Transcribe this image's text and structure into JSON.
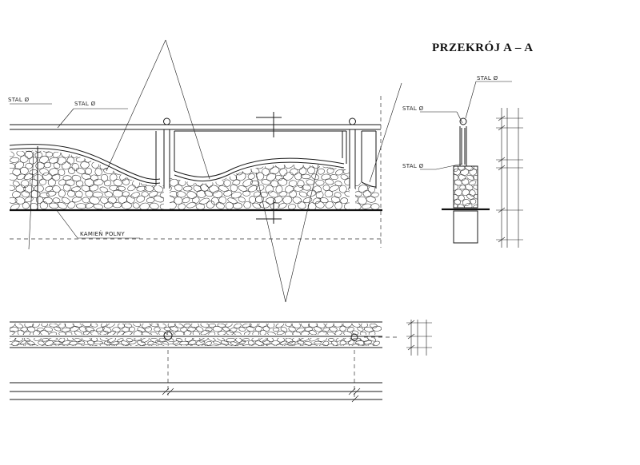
{
  "drawing": {
    "section_title": "PRZEKRÓJ A – A",
    "labels": {
      "steel_left_edge": "STAL Ø",
      "steel_top": "STAL Ø",
      "field_stone": "KAMIEŃ POLNY",
      "section_steel_cap": "STAL Ø",
      "section_steel_post": "STAL Ø",
      "section_steel_base": "STAL Ø"
    }
  }
}
